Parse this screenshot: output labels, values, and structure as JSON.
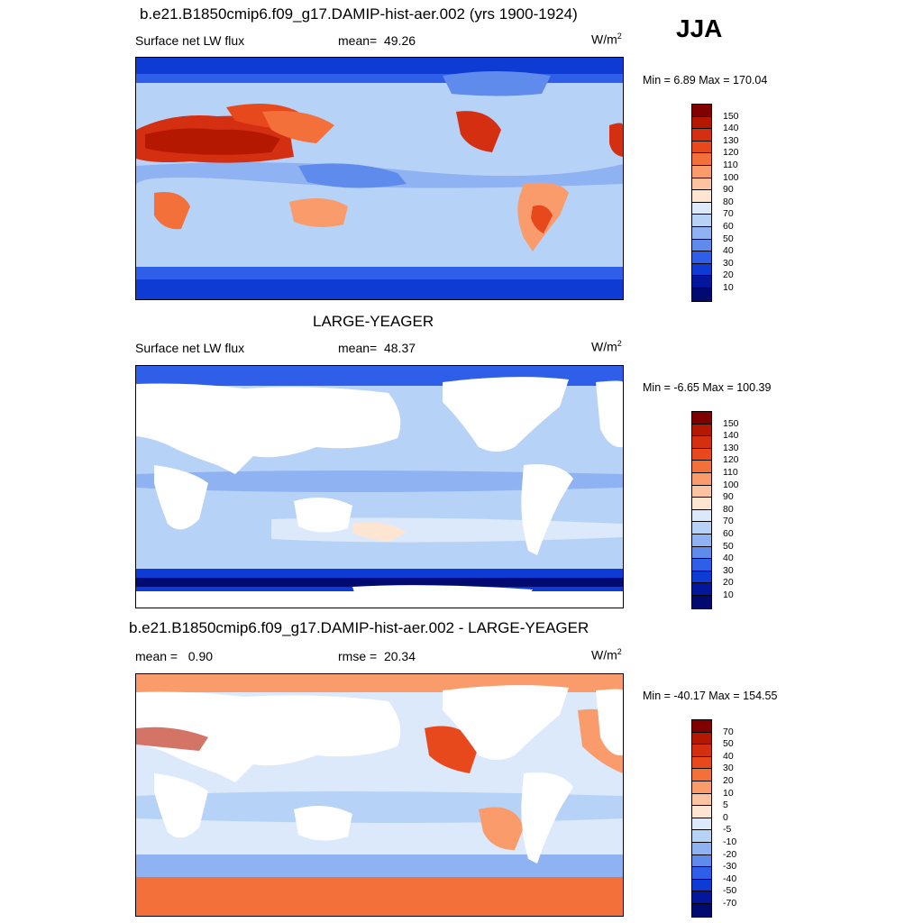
{
  "season": "JJA",
  "panels": [
    {
      "title": "b.e21.B1850cmip6.f09_g17.DAMIP-hist-aer.002 (yrs 1900-1924)",
      "variable": "Surface net LW flux",
      "stat1_label": "mean=",
      "stat1_value": "49.26",
      "stat2_label": "",
      "stat2_value": "",
      "units_base": "W/m",
      "units_exp": "2",
      "minmax": "Min =   6.89 Max = 170.04",
      "colorbar": {
        "labels": [
          "150",
          "140",
          "130",
          "120",
          "110",
          "100",
          "90",
          "80",
          "70",
          "60",
          "50",
          "40",
          "30",
          "20",
          "10"
        ],
        "colors": [
          "#800000",
          "#b51800",
          "#d42f10",
          "#e8491c",
          "#f4703a",
          "#f99b6a",
          "#fbc3a0",
          "#fde5d2",
          "#dbe9fb",
          "#b7d2f7",
          "#8fb3f2",
          "#5f8bec",
          "#2f5fe8",
          "#0d3bd4",
          "#02179c",
          "#000a70"
        ]
      },
      "map_type": "full"
    },
    {
      "title": "LARGE-YEAGER",
      "variable": "Surface net LW flux",
      "stat1_label": "mean=",
      "stat1_value": "48.37",
      "stat2_label": "",
      "stat2_value": "",
      "units_base": "W/m",
      "units_exp": "2",
      "minmax": "Min =  -6.65 Max = 100.39",
      "colorbar": {
        "labels": [
          "150",
          "140",
          "130",
          "120",
          "110",
          "100",
          "90",
          "80",
          "70",
          "60",
          "50",
          "40",
          "30",
          "20",
          "10"
        ],
        "colors": [
          "#800000",
          "#b51800",
          "#d42f10",
          "#e8491c",
          "#f4703a",
          "#f99b6a",
          "#fbc3a0",
          "#fde5d2",
          "#dbe9fb",
          "#b7d2f7",
          "#8fb3f2",
          "#5f8bec",
          "#2f5fe8",
          "#0d3bd4",
          "#02179c",
          "#000a70"
        ]
      },
      "map_type": "ocean"
    },
    {
      "title": "b.e21.B1850cmip6.f09_g17.DAMIP-hist-aer.002 - LARGE-YEAGER",
      "variable": "",
      "stat1_label": "mean =",
      "stat1_value": "0.90",
      "stat2_label": "rmse =",
      "stat2_value": "20.34",
      "units_base": "W/m",
      "units_exp": "2",
      "minmax": "Min = -40.17 Max = 154.55",
      "colorbar": {
        "labels": [
          "70",
          "50",
          "40",
          "30",
          "20",
          "10",
          "5",
          "0",
          "-5",
          "-10",
          "-20",
          "-30",
          "-40",
          "-50",
          "-70"
        ],
        "colors": [
          "#800000",
          "#b51800",
          "#d42f10",
          "#e8491c",
          "#f4703a",
          "#f99b6a",
          "#fbc3a0",
          "#fde5d2",
          "#dbe9fb",
          "#b7d2f7",
          "#8fb3f2",
          "#5f8bec",
          "#2f5fe8",
          "#0d3bd4",
          "#02179c",
          "#000a70"
        ]
      },
      "map_type": "diff"
    }
  ]
}
